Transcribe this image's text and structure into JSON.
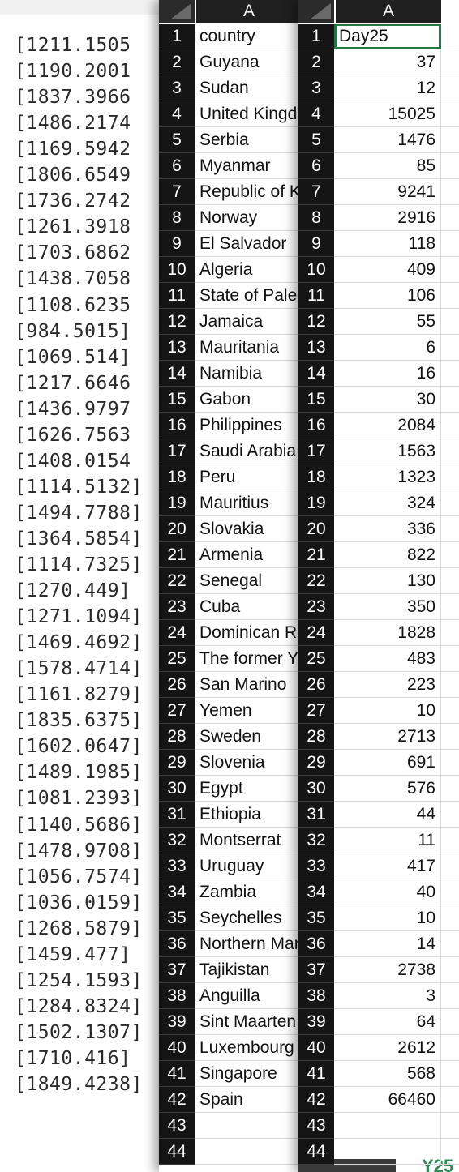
{
  "mono_list": [
    "[1211.1505",
    "[1190.2001",
    "[1837.3966",
    "[1486.2174",
    "[1169.5942",
    "[1806.6549",
    "[1736.2742",
    "[1261.3918",
    "[1703.6862",
    "[1438.7058",
    "[1108.6235",
    "[984.5015]",
    "[1069.514]",
    "[1217.6646",
    "[1436.9797",
    "[1626.7563",
    "[1408.0154",
    "[1114.5132]",
    "[1494.7788]",
    "[1364.5854]",
    "[1114.7325]",
    "[1270.449]",
    "[1271.1094]",
    "[1469.4692]",
    "[1578.4714]",
    "[1161.8279]",
    "[1835.6375]",
    "[1602.0647]",
    "[1489.1985]",
    "[1081.2393]",
    "[1140.5686]",
    "[1478.9708]",
    "[1056.7574]",
    "[1036.0159]",
    "[1268.5879]",
    "[1459.477]",
    "[1254.1593]",
    "[1284.8324]",
    "[1502.1307]",
    "[1710.416]",
    "[1849.4238]"
  ],
  "sheet_a": {
    "column_header": "A",
    "row_numbers": [
      "1",
      "2",
      "3",
      "4",
      "5",
      "6",
      "7",
      "8",
      "9",
      "10",
      "11",
      "12",
      "13",
      "14",
      "15",
      "16",
      "17",
      "18",
      "19",
      "20",
      "21",
      "22",
      "23",
      "24",
      "25",
      "26",
      "27",
      "28",
      "29",
      "30",
      "31",
      "32",
      "33",
      "34",
      "35",
      "36",
      "37",
      "38",
      "39",
      "40",
      "41",
      "42",
      "43",
      "44"
    ],
    "cells": [
      "country",
      "Guyana",
      "Sudan",
      "United Kingdom",
      "Serbia",
      "Myanmar",
      "Republic of Korea",
      "Norway",
      "El Salvador",
      "Algeria",
      "State of Palestine",
      "Jamaica",
      "Mauritania",
      "Namibia",
      "Gabon",
      "Philippines",
      "Saudi Arabia",
      "Peru",
      "Mauritius",
      "Slovakia",
      "Armenia",
      "Senegal",
      "Cuba",
      "Dominican Republic",
      "The former Yugoslav",
      "San Marino",
      "Yemen",
      "Sweden",
      "Slovenia",
      "Egypt",
      "Ethiopia",
      "Montserrat",
      "Uruguay",
      "Zambia",
      "Seychelles",
      "Northern Mariana",
      "Tajikistan",
      "Anguilla",
      "Sint Maarten",
      "Luxembourg",
      "Singapore",
      "Spain",
      "",
      ""
    ]
  },
  "sheet_b": {
    "column_header": "A",
    "row_numbers": [
      "1",
      "2",
      "3",
      "4",
      "5",
      "6",
      "7",
      "8",
      "9",
      "10",
      "11",
      "12",
      "13",
      "14",
      "15",
      "16",
      "17",
      "18",
      "19",
      "20",
      "21",
      "22",
      "23",
      "24",
      "25",
      "26",
      "27",
      "28",
      "29",
      "30",
      "31",
      "32",
      "33",
      "34",
      "35",
      "36",
      "37",
      "38",
      "39",
      "40",
      "41",
      "42",
      "43",
      "44"
    ],
    "cells": [
      "Day25",
      "37",
      "12",
      "15025",
      "1476",
      "85",
      "9241",
      "2916",
      "118",
      "409",
      "106",
      "55",
      "6",
      "16",
      "30",
      "2084",
      "1563",
      "1323",
      "324",
      "336",
      "822",
      "130",
      "350",
      "1828",
      "483",
      "223",
      "10",
      "2713",
      "691",
      "576",
      "44",
      "11",
      "417",
      "40",
      "10",
      "14",
      "2738",
      "3",
      "64",
      "2612",
      "568",
      "66460",
      "",
      ""
    ],
    "selected_cell": "A1",
    "peek_text": "Y25"
  },
  "colors": {
    "selection": "#1d7b45",
    "row_header_bg": "#151515",
    "col_header_bg": "#1f1f1f"
  }
}
